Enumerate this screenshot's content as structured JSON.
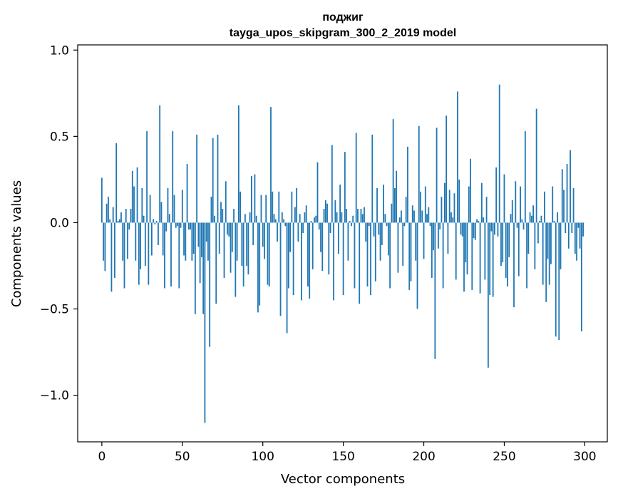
{
  "chart_data": {
    "type": "bar",
    "title": "поджиг",
    "subtitle": "tayga_upos_skipgram_300_2_2019 model",
    "xlabel": "Vector components",
    "ylabel": "Components values",
    "xlim": [
      -15,
      314
    ],
    "ylim": [
      -1.27,
      1.03
    ],
    "xticks": [
      0,
      50,
      100,
      150,
      200,
      250,
      300
    ],
    "xtick_labels": [
      "0",
      "50",
      "100",
      "150",
      "200",
      "250",
      "300"
    ],
    "yticks": [
      1.0,
      0.5,
      0.0,
      -0.5,
      -1.0
    ],
    "ytick_labels": [
      "1.0",
      "0.5",
      "0.0",
      "−0.5",
      "−1.0"
    ],
    "bar_color": "#1f77b4",
    "grid": false,
    "values": [
      0.26,
      -0.22,
      -0.28,
      0.11,
      0.15,
      0.02,
      -0.4,
      0.09,
      -0.32,
      0.46,
      0.01,
      0.02,
      0.06,
      -0.22,
      -0.38,
      0.08,
      -0.21,
      -0.04,
      0.08,
      0.3,
      0.21,
      -0.22,
      0.32,
      -0.36,
      -0.27,
      0.2,
      0.04,
      -0.25,
      0.53,
      -0.36,
      0.16,
      -0.19,
      0.02,
      -0.01,
      0.01,
      -0.13,
      0.68,
      0.12,
      -0.19,
      -0.38,
      -0.05,
      0.2,
      0.05,
      -0.37,
      0.53,
      0.16,
      -0.03,
      -0.02,
      -0.38,
      -0.03,
      0.19,
      -0.19,
      -0.22,
      0.34,
      -0.04,
      -0.04,
      -0.22,
      -0.18,
      -0.53,
      0.51,
      -0.14,
      -0.35,
      -0.2,
      -0.53,
      -1.16,
      -0.11,
      -0.22,
      -0.72,
      0.15,
      0.49,
      0.04,
      -0.47,
      0.51,
      -0.18,
      0.12,
      0.08,
      -0.32,
      0.24,
      -0.07,
      -0.08,
      -0.29,
      -0.17,
      0.08,
      -0.43,
      -0.22,
      0.68,
      0.18,
      -0.25,
      -0.37,
      0.05,
      -0.25,
      -0.3,
      0.06,
      0.27,
      -0.13,
      0.28,
      0.04,
      -0.52,
      -0.48,
      0.16,
      -0.14,
      -0.21,
      0.16,
      -0.36,
      -0.37,
      0.67,
      0.18,
      0.05,
      0.02,
      -0.11,
      0.18,
      -0.54,
      0.06,
      0.02,
      -0.02,
      -0.64,
      -0.38,
      -0.17,
      0.18,
      -0.42,
      0.09,
      0.2,
      -0.11,
      0.05,
      -0.45,
      -0.06,
      0.06,
      0.1,
      -0.37,
      -0.44,
      0.01,
      -0.27,
      0.03,
      0.04,
      0.35,
      -0.04,
      -0.17,
      -0.28,
      0.08,
      0.13,
      0.11,
      -0.3,
      -0.06,
      0.45,
      -0.45,
      0.13,
      0.06,
      -0.18,
      0.22,
      0.06,
      -0.42,
      0.41,
      0.08,
      -0.22,
      0.01,
      -0.02,
      0.04,
      -0.38,
      0.52,
      0.08,
      -0.47,
      0.08,
      0.05,
      0.09,
      -0.11,
      -0.37,
      -0.02,
      -0.42,
      0.51,
      -0.08,
      -0.34,
      0.2,
      -0.07,
      -0.22,
      -0.13,
      0.22,
      0.05,
      -0.02,
      -0.19,
      -0.38,
      0.11,
      0.6,
      0.2,
      0.3,
      -0.29,
      0.03,
      0.07,
      -0.25,
      -0.02,
      0.15,
      0.44,
      -0.39,
      -0.34,
      0.1,
      0.07,
      -0.22,
      -0.5,
      0.56,
      0.18,
      0.07,
      -0.21,
      0.21,
      0.05,
      0.09,
      -0.02,
      -0.32,
      -0.16,
      -0.79,
      0.55,
      -0.15,
      -0.04,
      0.15,
      -0.38,
      0.23,
      0.62,
      -0.18,
      0.19,
      0.06,
      0.03,
      0.17,
      -0.33,
      0.76,
      0.25,
      -0.07,
      -0.08,
      -0.4,
      -0.23,
      -0.3,
      0.21,
      0.37,
      -0.39,
      -0.09,
      -0.1,
      0.02,
      0.01,
      -0.41,
      0.23,
      0.03,
      -0.33,
      0.15,
      -0.84,
      -0.42,
      -0.05,
      -0.43,
      -0.07,
      0.32,
      -0.08,
      0.8,
      -0.25,
      -0.23,
      0.28,
      -0.32,
      -0.37,
      -0.2,
      0.05,
      0.13,
      -0.49,
      0.24,
      -0.03,
      -0.31,
      0.21,
      0.02,
      -0.04,
      0.53,
      -0.38,
      -0.18,
      0.06,
      0.04,
      0.1,
      -0.27,
      0.66,
      -0.12,
      0.01,
      0.04,
      -0.36,
      0.18,
      -0.46,
      -0.21,
      -0.36,
      -0.24,
      0.21,
      0.01,
      -0.66,
      0.06,
      -0.68,
      -0.27,
      0.31,
      0.19,
      -0.06,
      0.34,
      -0.15,
      0.42,
      -0.06,
      0.2,
      -0.18,
      -0.22,
      -0.03,
      -0.15,
      -0.63,
      -0.08
    ]
  }
}
